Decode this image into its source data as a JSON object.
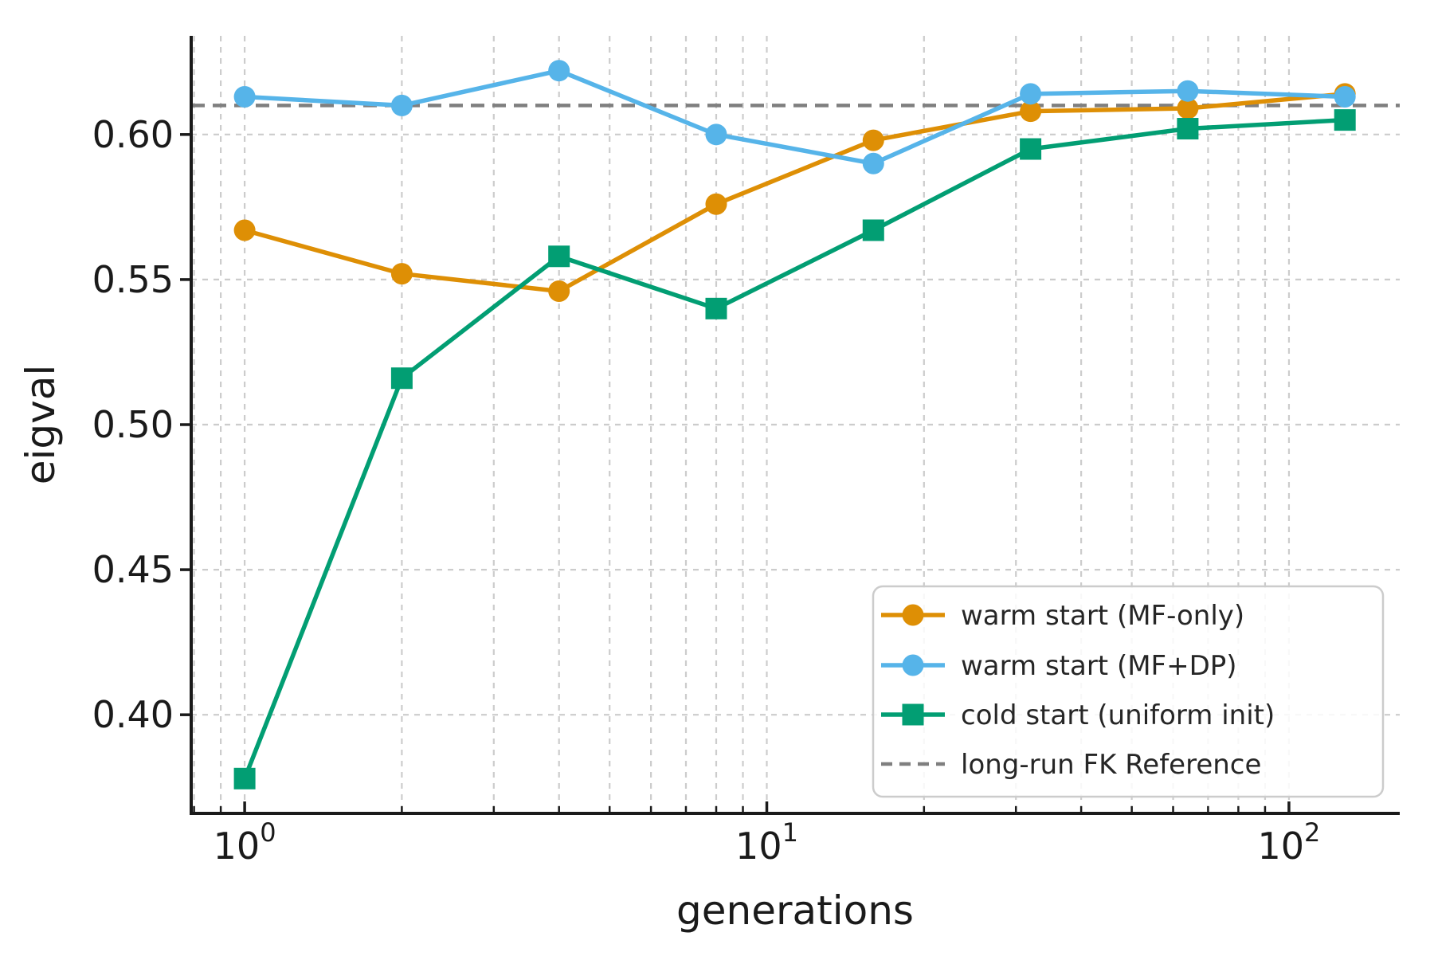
{
  "figure": {
    "background": "#ffffff",
    "text_color": "#1a1a1a",
    "spine_color": "#1a1a1a"
  },
  "chart_data": {
    "type": "line",
    "xlabel": "generations",
    "ylabel": "eigval",
    "x_scale": "log",
    "x": [
      1,
      2,
      4,
      8,
      16,
      32,
      64,
      128
    ],
    "series": [
      {
        "name": "warm start (MF-only)",
        "color": "#DE8F05",
        "marker": "circle",
        "values": [
          0.567,
          0.552,
          0.546,
          0.576,
          0.598,
          0.608,
          0.609,
          0.614
        ]
      },
      {
        "name": "warm start (MF+DP)",
        "color": "#56B4E9",
        "marker": "circle",
        "values": [
          0.613,
          0.61,
          0.622,
          0.6,
          0.59,
          0.614,
          0.615,
          0.613
        ]
      },
      {
        "name": "cold start (uniform init)",
        "color": "#029E73",
        "marker": "square",
        "values": [
          0.378,
          0.516,
          0.558,
          0.54,
          0.567,
          0.595,
          0.602,
          0.605
        ]
      }
    ],
    "reference": {
      "label": "long-run FK Reference",
      "value": 0.61,
      "color": "#7f7f7f",
      "style": "dashed"
    },
    "x_ticks_major": [
      1,
      10,
      100
    ],
    "x_tick_labels": [
      "10⁰",
      "10¹",
      "10²"
    ],
    "x_ticks_minor": [
      0.8,
      0.9,
      2,
      3,
      4,
      5,
      6,
      7,
      8,
      9,
      20,
      30,
      40,
      50,
      60,
      70,
      80,
      90
    ],
    "y_ticks": [
      0.4,
      0.45,
      0.5,
      0.55,
      0.6
    ],
    "y_tick_labels": [
      "0.40",
      "0.45",
      "0.50",
      "0.55",
      "0.60"
    ],
    "xlim": [
      0.79,
      163
    ],
    "ylim": [
      0.366,
      0.634
    ],
    "grid": {
      "show": true,
      "color": "#cccccc",
      "style": "dashed"
    },
    "legend": {
      "position": "lower right",
      "entries": [
        "warm start (MF-only)",
        "warm start (MF+DP)",
        "cold start (uniform init)",
        "long-run FK Reference"
      ]
    }
  }
}
